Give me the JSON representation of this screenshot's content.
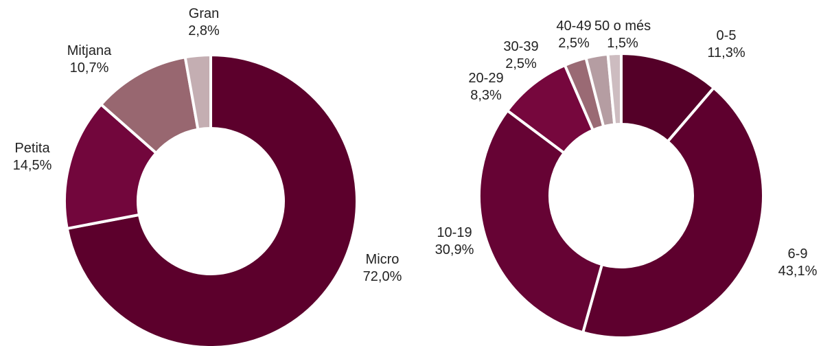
{
  "chart_data": [
    {
      "type": "pie",
      "donut": true,
      "slices": [
        {
          "label": "Micro",
          "value": 72.0,
          "value_text": "72,0%",
          "color": "#5c002c"
        },
        {
          "label": "Petita",
          "value": 14.5,
          "value_text": "14,5%",
          "color": "#72063c"
        },
        {
          "label": "Mitjana",
          "value": 10.7,
          "value_text": "10,7%",
          "color": "#986770"
        },
        {
          "label": "Gran",
          "value": 2.8,
          "value_text": "2,8%",
          "color": "#c4aeb2"
        }
      ]
    },
    {
      "type": "pie",
      "donut": true,
      "slices": [
        {
          "label": "0-5",
          "value": 11.3,
          "value_text": "11,3%",
          "color": "#540028"
        },
        {
          "label": "6-9",
          "value": 43.1,
          "value_text": "43,1%",
          "color": "#5e002e"
        },
        {
          "label": "10-19",
          "value": 30.9,
          "value_text": "30,9%",
          "color": "#660334"
        },
        {
          "label": "20-29",
          "value": 8.3,
          "value_text": "8,3%",
          "color": "#76073d"
        },
        {
          "label": "30-39",
          "value": 2.5,
          "value_text": "2,5%",
          "color": "#9a6a74"
        },
        {
          "label": "40-49",
          "value": 2.5,
          "value_text": "2,5%",
          "color": "#b59da2"
        },
        {
          "label": "50 o més",
          "value": 1.5,
          "value_text": "1,5%",
          "color": "#cdbcc0"
        }
      ]
    }
  ]
}
